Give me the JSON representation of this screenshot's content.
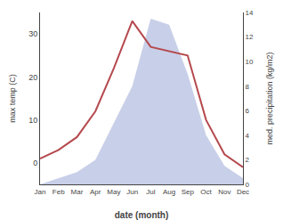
{
  "chart_data": {
    "type": "line",
    "categories": [
      "Jan",
      "Feb",
      "Mar",
      "Apr",
      "May",
      "Jun",
      "Jul",
      "Aug",
      "Sep",
      "Oct",
      "Nov",
      "Dec"
    ],
    "series": [
      {
        "type": "area",
        "axis": "y2",
        "color": "#c8cfe8",
        "values": [
          0.0,
          0.5,
          1.0,
          2.0,
          5.0,
          8.0,
          13.5,
          13.0,
          9.0,
          4.0,
          1.5,
          0.5
        ]
      },
      {
        "type": "line",
        "axis": "y",
        "color": "#b5494e",
        "values": [
          1,
          3,
          6,
          12,
          22,
          33,
          27,
          26,
          25,
          10,
          2,
          -1
        ]
      }
    ],
    "xlabel": "date (month)",
    "ylabel": "max temp (C)",
    "y2label": "med. precipitation (kg/m2)",
    "ylim": [
      -5,
      35
    ],
    "yticks": [
      0,
      10,
      20,
      30
    ],
    "y2lim": [
      0,
      14
    ],
    "y2ticks": [
      0,
      2,
      4,
      6,
      8,
      10,
      12,
      14
    ],
    "grid": false
  }
}
